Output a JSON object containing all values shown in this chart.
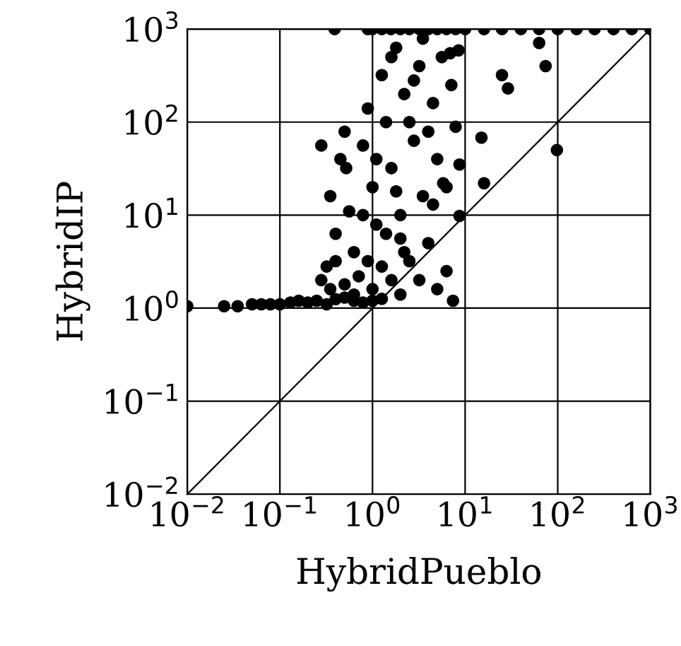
{
  "chart_data": {
    "type": "scatter",
    "xlabel": "HybridPueblo",
    "ylabel": "HybridIP",
    "log": "xy",
    "grid": true,
    "marker": "circle",
    "xlim": [
      0.01,
      1000
    ],
    "ylim": [
      0.01,
      1000
    ],
    "xticks": [
      {
        "value": 0.01,
        "label": "10$^{−2}$"
      },
      {
        "value": 0.1,
        "label": "10$^{−1}$"
      },
      {
        "value": 1,
        "label": "10$^{0}$"
      },
      {
        "value": 10,
        "label": "10$^{1}$"
      },
      {
        "value": 100,
        "label": "10$^{2}$"
      },
      {
        "value": 1000,
        "label": "10$^{3}$"
      }
    ],
    "yticks": [
      {
        "value": 0.01,
        "label": "10$^{−2}$"
      },
      {
        "value": 0.1,
        "label": "10$^{−1}$"
      },
      {
        "value": 1,
        "label": "10$^{0}$"
      },
      {
        "value": 10,
        "label": "10$^{1}$"
      },
      {
        "value": 100,
        "label": "10$^{2}$"
      },
      {
        "value": 1000,
        "label": "10$^{3}$"
      }
    ],
    "series": [
      {
        "type": "line",
        "color": "#000000",
        "marker": "none",
        "x": [
          0.01,
          1000
        ],
        "values": [
          0.01,
          1000
        ]
      },
      {
        "color": "#000000",
        "x": [
          0.39,
          0.89,
          1,
          1.26,
          1.58,
          2,
          2.5,
          3.2,
          4,
          5,
          6.3,
          7.9,
          10,
          16,
          25,
          40,
          63,
          100,
          160,
          250,
          400,
          630,
          1000,
          0.01,
          0.025,
          0.035,
          0.05,
          0.063,
          0.079,
          0.1,
          0.13,
          0.16,
          0.2,
          0.25,
          0.32,
          0.4,
          0.5,
          0.63,
          0.79,
          1.0,
          0.28,
          0.32,
          0.35,
          0.4,
          0.35,
          0.45,
          0.5,
          0.52,
          0.56,
          0.63,
          0.71,
          0.79,
          0.89,
          1,
          1.1,
          1.26,
          1.4,
          1.6,
          1.8,
          2,
          2.2,
          2.5,
          2.8,
          3.2,
          3.5,
          4,
          4.5,
          5,
          5.6,
          6.3,
          7.1,
          7.9,
          0.5,
          0.63,
          1,
          1.26,
          1.6,
          2,
          2.2,
          3.2,
          1.4,
          0.89,
          1.8,
          2.5,
          3.5,
          2.8,
          4,
          1.1,
          0.79,
          2,
          5,
          1.26,
          1.6,
          4.5,
          6.3,
          0.4,
          0.28,
          6.9,
          8.5,
          63,
          74,
          25,
          29,
          15,
          98,
          16,
          8.7,
          5.8,
          8.7,
          7.4
        ],
        "values": [
          1000,
          1000,
          1000,
          1000,
          1000,
          1000,
          1000,
          1000,
          1000,
          1000,
          1000,
          1000,
          1000,
          1000,
          1000,
          1000,
          1000,
          1000,
          1000,
          1000,
          1000,
          1000,
          1000,
          1.05,
          1.05,
          1.05,
          1.1,
          1.1,
          1.1,
          1.1,
          1.15,
          1.2,
          1.15,
          1.2,
          1.1,
          1.25,
          1.3,
          1.2,
          1.15,
          1.2,
          2.0,
          2.8,
          1.6,
          6.3,
          16,
          40,
          79,
          32,
          11,
          4,
          2.2,
          56,
          140,
          20,
          7.9,
          320,
          100,
          32,
          630,
          10,
          200,
          3.2,
          63,
          400,
          16,
          5,
          160,
          40,
          500,
          2.5,
          250,
          89,
          1.8,
          1.4,
          1.6,
          1.26,
          2,
          1.4,
          4,
          2,
          6.3,
          3.2,
          18,
          100,
          790,
          280,
          79,
          40,
          10,
          5.6,
          1.6,
          2.8,
          500,
          13,
          20,
          3.2,
          56,
          550,
          590,
          710,
          400,
          320,
          230,
          68,
          50,
          22,
          35,
          22,
          9.8,
          1.2
        ]
      }
    ]
  }
}
